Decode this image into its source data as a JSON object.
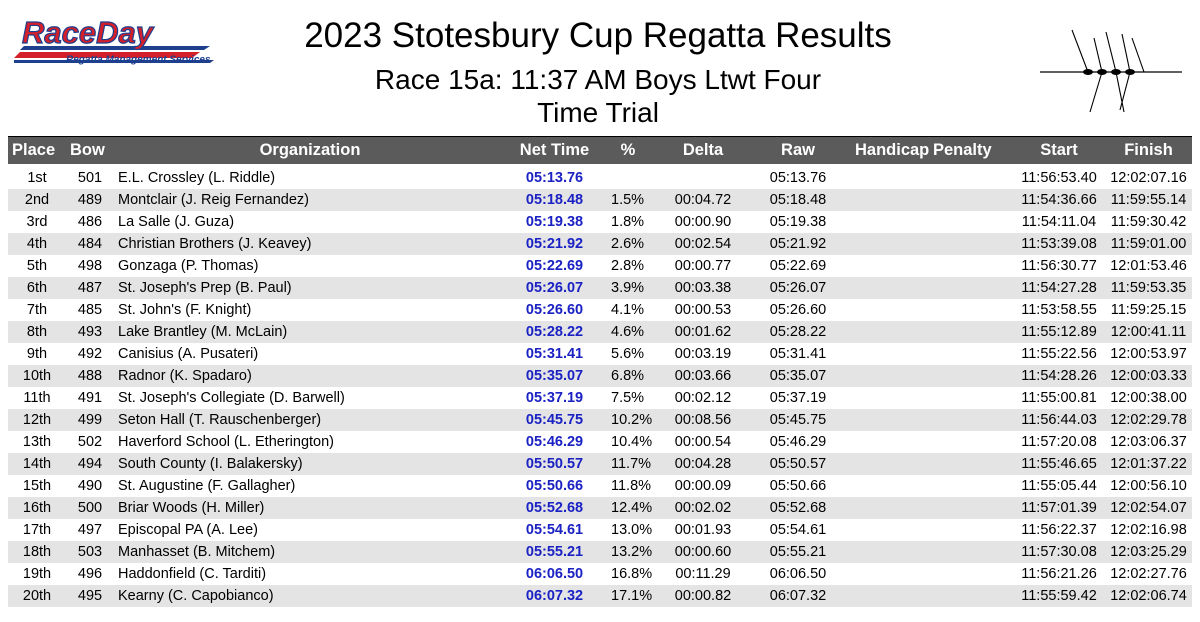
{
  "logo": {
    "brand": "RaceDay",
    "tagline": "Regatta Management Services"
  },
  "header": {
    "title": "2023 Stotesbury Cup Regatta Results",
    "race": "Race 15a:  11:37 AM  Boys Ltwt Four",
    "subtitle": "Time Trial"
  },
  "colors": {
    "header_bg": "#5b5b5b",
    "net_time": "#1b22c4",
    "stripe": "#e4e4e4",
    "logo_red": "#d4202a",
    "logo_blue": "#1d3f8e"
  },
  "table": {
    "columns": [
      "Place",
      "Bow",
      "Organization",
      "Net Time",
      "%",
      "Delta",
      "Raw",
      "Handicap",
      "Penalty",
      "Start",
      "Finish"
    ],
    "rows": [
      {
        "place": "1st",
        "bow": "501",
        "org": "E.L. Crossley  (L. Riddle)",
        "net": "05:13.76",
        "pct": "",
        "delta": "",
        "raw": "05:13.76",
        "start": "11:56:53.40",
        "finish": "12:02:07.16"
      },
      {
        "place": "2nd",
        "bow": "489",
        "org": "Montclair  (J. Reig Fernandez)",
        "net": "05:18.48",
        "pct": "1.5%",
        "delta": "00:04.72",
        "raw": "05:18.48",
        "start": "11:54:36.66",
        "finish": "11:59:55.14"
      },
      {
        "place": "3rd",
        "bow": "486",
        "org": "La Salle  (J. Guza)",
        "net": "05:19.38",
        "pct": "1.8%",
        "delta": "00:00.90",
        "raw": "05:19.38",
        "start": "11:54:11.04",
        "finish": "11:59:30.42"
      },
      {
        "place": "4th",
        "bow": "484",
        "org": "Christian Brothers  (J. Keavey)",
        "net": "05:21.92",
        "pct": "2.6%",
        "delta": "00:02.54",
        "raw": "05:21.92",
        "start": "11:53:39.08",
        "finish": "11:59:01.00"
      },
      {
        "place": "5th",
        "bow": "498",
        "org": "Gonzaga  (P. Thomas)",
        "net": "05:22.69",
        "pct": "2.8%",
        "delta": "00:00.77",
        "raw": "05:22.69",
        "start": "11:56:30.77",
        "finish": "12:01:53.46"
      },
      {
        "place": "6th",
        "bow": "487",
        "org": "St. Joseph's Prep  (B. Paul)",
        "net": "05:26.07",
        "pct": "3.9%",
        "delta": "00:03.38",
        "raw": "05:26.07",
        "start": "11:54:27.28",
        "finish": "11:59:53.35"
      },
      {
        "place": "7th",
        "bow": "485",
        "org": "St. John's  (F. Knight)",
        "net": "05:26.60",
        "pct": "4.1%",
        "delta": "00:00.53",
        "raw": "05:26.60",
        "start": "11:53:58.55",
        "finish": "11:59:25.15"
      },
      {
        "place": "8th",
        "bow": "493",
        "org": "Lake Brantley  (M. McLain)",
        "net": "05:28.22",
        "pct": "4.6%",
        "delta": "00:01.62",
        "raw": "05:28.22",
        "start": "11:55:12.89",
        "finish": "12:00:41.11"
      },
      {
        "place": "9th",
        "bow": "492",
        "org": "Canisius  (A. Pusateri)",
        "net": "05:31.41",
        "pct": "5.6%",
        "delta": "00:03.19",
        "raw": "05:31.41",
        "start": "11:55:22.56",
        "finish": "12:00:53.97"
      },
      {
        "place": "10th",
        "bow": "488",
        "org": "Radnor  (K. Spadaro)",
        "net": "05:35.07",
        "pct": "6.8%",
        "delta": "00:03.66",
        "raw": "05:35.07",
        "start": "11:54:28.26",
        "finish": "12:00:03.33"
      },
      {
        "place": "11th",
        "bow": "491",
        "org": "St. Joseph's Collegiate  (D. Barwell)",
        "net": "05:37.19",
        "pct": "7.5%",
        "delta": "00:02.12",
        "raw": "05:37.19",
        "start": "11:55:00.81",
        "finish": "12:00:38.00"
      },
      {
        "place": "12th",
        "bow": "499",
        "org": "Seton Hall  (T. Rauschenberger)",
        "net": "05:45.75",
        "pct": "10.2%",
        "delta": "00:08.56",
        "raw": "05:45.75",
        "start": "11:56:44.03",
        "finish": "12:02:29.78"
      },
      {
        "place": "13th",
        "bow": "502",
        "org": "Haverford School  (L. Etherington)",
        "net": "05:46.29",
        "pct": "10.4%",
        "delta": "00:00.54",
        "raw": "05:46.29",
        "start": "11:57:20.08",
        "finish": "12:03:06.37"
      },
      {
        "place": "14th",
        "bow": "494",
        "org": "South County  (I. Balakersky)",
        "net": "05:50.57",
        "pct": "11.7%",
        "delta": "00:04.28",
        "raw": "05:50.57",
        "start": "11:55:46.65",
        "finish": "12:01:37.22"
      },
      {
        "place": "15th",
        "bow": "490",
        "org": "St. Augustine  (F. Gallagher)",
        "net": "05:50.66",
        "pct": "11.8%",
        "delta": "00:00.09",
        "raw": "05:50.66",
        "start": "11:55:05.44",
        "finish": "12:00:56.10"
      },
      {
        "place": "16th",
        "bow": "500",
        "org": "Briar Woods  (H. Miller)",
        "net": "05:52.68",
        "pct": "12.4%",
        "delta": "00:02.02",
        "raw": "05:52.68",
        "start": "11:57:01.39",
        "finish": "12:02:54.07"
      },
      {
        "place": "17th",
        "bow": "497",
        "org": "Episcopal PA  (A. Lee)",
        "net": "05:54.61",
        "pct": "13.0%",
        "delta": "00:01.93",
        "raw": "05:54.61",
        "start": "11:56:22.37",
        "finish": "12:02:16.98"
      },
      {
        "place": "18th",
        "bow": "503",
        "org": "Manhasset  (B. Mitchem)",
        "net": "05:55.21",
        "pct": "13.2%",
        "delta": "00:00.60",
        "raw": "05:55.21",
        "start": "11:57:30.08",
        "finish": "12:03:25.29"
      },
      {
        "place": "19th",
        "bow": "496",
        "org": "Haddonfield  (C. Tarditi)",
        "net": "06:06.50",
        "pct": "16.8%",
        "delta": "00:11.29",
        "raw": "06:06.50",
        "start": "11:56:21.26",
        "finish": "12:02:27.76"
      },
      {
        "place": "20th",
        "bow": "495",
        "org": "Kearny  (C. Capobianco)",
        "net": "06:07.32",
        "pct": "17.1%",
        "delta": "00:00.82",
        "raw": "06:07.32",
        "start": "11:55:59.42",
        "finish": "12:02:06.74"
      }
    ]
  }
}
